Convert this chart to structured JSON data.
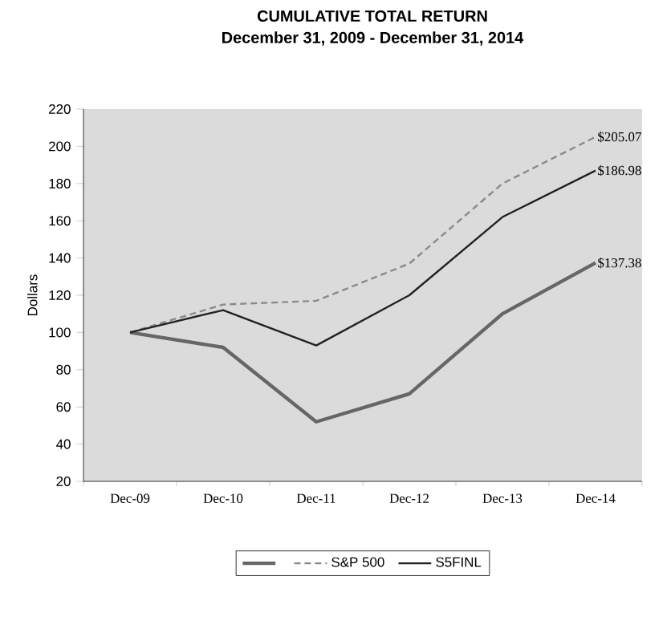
{
  "chart_data": {
    "type": "line",
    "title": "CUMULATIVE TOTAL RETURN",
    "subtitle": "December 31, 2009 - December 31, 2014",
    "ylabel": "Dollars",
    "categories": [
      "Dec-09",
      "Dec-10",
      "Dec-11",
      "Dec-12",
      "Dec-13",
      "Dec-14"
    ],
    "ylim": [
      20,
      220
    ],
    "yticks": [
      20,
      40,
      60,
      80,
      100,
      120,
      140,
      160,
      180,
      200,
      220
    ],
    "series": [
      {
        "color": "#666666",
        "line_style": "solid",
        "values": [
          100,
          92,
          52,
          67,
          110,
          137.38
        ],
        "value_labels": [
          null,
          null,
          null,
          null,
          null,
          "$137.38"
        ]
      },
      {
        "name": "S&P 500",
        "color": "#8a8a8a",
        "line_style": "dashed",
        "values": [
          100,
          115,
          117,
          137,
          180,
          205.07
        ],
        "value_labels": [
          null,
          null,
          null,
          null,
          null,
          "$205.07"
        ]
      },
      {
        "name": "S5FINL",
        "color": "#222222",
        "line_style": "solid",
        "values": [
          100,
          112,
          93,
          120,
          162,
          186.98
        ],
        "value_labels": [
          null,
          null,
          null,
          null,
          null,
          "$186.98"
        ]
      }
    ],
    "marker": "none",
    "grid": false,
    "legend": "bottom"
  }
}
